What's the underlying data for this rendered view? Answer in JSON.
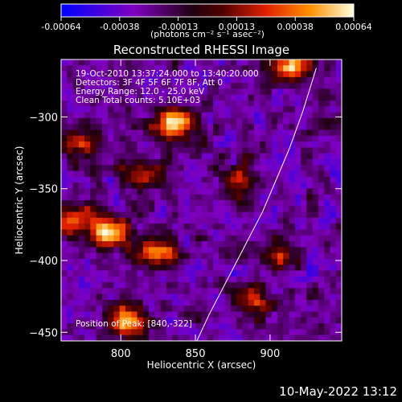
{
  "chart_data": {
    "type": "heatmap",
    "title": "Reconstructed RHESSI Image",
    "xlabel": "Heliocentric X (arcsec)",
    "ylabel": "Heliocentric Y (arcsec)",
    "xlim": [
      760,
      948
    ],
    "ylim": [
      -456,
      -260
    ],
    "x_ticks": [
      800,
      850,
      900
    ],
    "y_ticks": [
      -300,
      -350,
      -400,
      -450
    ],
    "colorbar": {
      "unit_label": "(photons cm⁻² s⁻¹ asec⁻²)",
      "range": [
        -0.00064,
        0.00064
      ],
      "tick_labels": [
        "-0.00064",
        "-0.00038",
        "-0.00013",
        "0.00013",
        "0.00038",
        "0.00064"
      ]
    },
    "annotations": {
      "time_range": "19-Oct-2010 13:37:24.000 to 13:40:20.000",
      "detectors": "Detectors: 3F 4F 5F 6F 7F 8F, Att 0",
      "energy_range": "Energy Range: 12.0 - 25.0 keV",
      "method": "Clean     Total counts: 5.10E+03",
      "peak": "Position of Peak: [840,-322]"
    },
    "limb_line": {
      "x": [
        851,
        859,
        868,
        877,
        886,
        895,
        904,
        913,
        922,
        931
      ],
      "y": [
        -456,
        -438,
        -420,
        -402,
        -384,
        -366,
        -344,
        -322,
        -296,
        -266
      ]
    },
    "bright_sources": [
      {
        "x": 836,
        "y": -305,
        "level": 1.0
      },
      {
        "x": 915,
        "y": -265,
        "level": 0.9
      },
      {
        "x": 793,
        "y": -380,
        "level": 0.85
      },
      {
        "x": 815,
        "y": -340,
        "level": 0.7
      },
      {
        "x": 825,
        "y": -395,
        "level": 0.8
      },
      {
        "x": 770,
        "y": -372,
        "level": 0.8
      },
      {
        "x": 775,
        "y": -318,
        "level": 0.6
      },
      {
        "x": 805,
        "y": -442,
        "level": 0.95
      },
      {
        "x": 880,
        "y": -345,
        "level": 0.6
      },
      {
        "x": 905,
        "y": -395,
        "level": 0.5
      },
      {
        "x": 890,
        "y": -430,
        "level": 0.55
      }
    ]
  },
  "footer": {
    "date": "10-May-2022 13:12"
  }
}
